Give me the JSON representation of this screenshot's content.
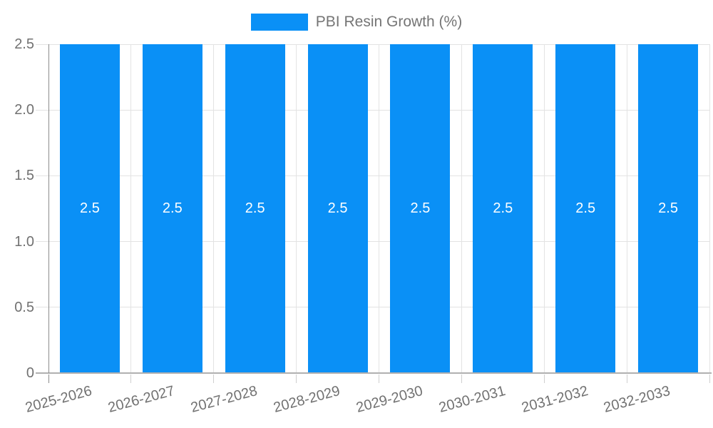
{
  "legend": {
    "label": "PBI Resin Growth (%)",
    "position": "top"
  },
  "chart_data": {
    "type": "bar",
    "title": "",
    "categories": [
      "2025-2026",
      "2026-2027",
      "2027-2028",
      "2028-2029",
      "2029-2030",
      "2030-2031",
      "2031-2032",
      "2032-2033"
    ],
    "series": [
      {
        "name": "PBI Resin Growth (%)",
        "values": [
          2.5,
          2.5,
          2.5,
          2.5,
          2.5,
          2.5,
          2.5,
          2.5
        ],
        "data_labels": [
          "2.5",
          "2.5",
          "2.5",
          "2.5",
          "2.5",
          "2.5",
          "2.5",
          "2.5"
        ]
      }
    ],
    "ylim": [
      0,
      2.5
    ],
    "yticks": [
      {
        "value": 0,
        "label": "0"
      },
      {
        "value": 0.5,
        "label": "0.5"
      },
      {
        "value": 1.0,
        "label": "1.0"
      },
      {
        "value": 1.5,
        "label": "1.5"
      },
      {
        "value": 2.0,
        "label": "2.0"
      },
      {
        "value": 2.5,
        "label": "2.5"
      }
    ],
    "grid": true,
    "legend_position": "top",
    "x_labels_rotation_deg": -15
  },
  "style": {
    "bar_color": "#0a90f6",
    "bar_label_color": "#ffffff",
    "axis_text_color": "#717171",
    "legend_text_color": "#757575",
    "gridline_color": "#e3e3e3",
    "tick_color": "#cfcfcf",
    "x_axis_line_color": "#b0b0b0",
    "y_axis_line_color": "#8c8c8c",
    "background": "#ffffff"
  }
}
